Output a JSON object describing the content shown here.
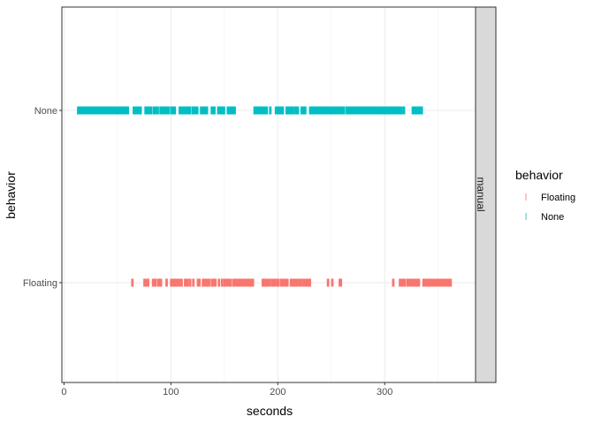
{
  "chart_data": {
    "type": "rug",
    "xlabel": "seconds",
    "ylabel": "behavior",
    "xlim": [
      -2,
      385
    ],
    "x_ticks": [
      0,
      100,
      200,
      300
    ],
    "x_tick_labels": [
      "0",
      "100",
      "200",
      "300"
    ],
    "categories": [
      "Floating",
      "None"
    ],
    "facet_label": "manual",
    "legend": {
      "title": "behavior",
      "placement": "right",
      "entries": [
        {
          "label": "Floating",
          "color": "#F8766D"
        },
        {
          "label": "None",
          "color": "#00BFC4"
        }
      ]
    },
    "series": [
      {
        "name": "None",
        "color": "#00BFC4",
        "segments": [
          [
            13,
            60
          ],
          [
            65,
            72
          ],
          [
            76,
            82
          ],
          [
            84,
            88
          ],
          [
            90,
            98
          ],
          [
            100,
            104
          ],
          [
            108,
            118
          ],
          [
            120,
            125
          ],
          [
            128,
            134
          ],
          [
            138,
            141
          ],
          [
            144,
            150
          ],
          [
            153,
            160
          ],
          [
            178,
            190
          ],
          [
            198,
            205
          ],
          [
            208,
            213
          ],
          [
            216,
            219
          ],
          [
            222,
            226
          ],
          [
            230,
            262
          ],
          [
            264,
            316
          ],
          [
            326,
            335
          ]
        ],
        "ticks": [
          186,
          193,
          210,
          214,
          233,
          248,
          261,
          270,
          285,
          298,
          318
        ]
      },
      {
        "name": "Floating",
        "color": "#F8766D",
        "segments": [
          [
            75,
            79
          ],
          [
            83,
            86
          ],
          [
            88,
            91
          ],
          [
            100,
            108
          ],
          [
            113,
            116
          ],
          [
            125,
            127
          ],
          [
            132,
            136
          ],
          [
            138,
            142
          ],
          [
            150,
            156
          ],
          [
            158,
            177
          ],
          [
            191,
            193
          ],
          [
            199,
            201
          ],
          [
            203,
            206
          ],
          [
            212,
            216
          ],
          [
            220,
            222
          ],
          [
            225,
            228
          ],
          [
            314,
            319
          ],
          [
            321,
            330
          ],
          [
            336,
            362
          ]
        ],
        "ticks": [
          64,
          96,
          110,
          118,
          121,
          130,
          145,
          148,
          160,
          172,
          186,
          188,
          190,
          195,
          196,
          197,
          207,
          208,
          209,
          217,
          218,
          224,
          227,
          229,
          230,
          247,
          251,
          258,
          259,
          308,
          316,
          332,
          339
        ]
      }
    ]
  }
}
